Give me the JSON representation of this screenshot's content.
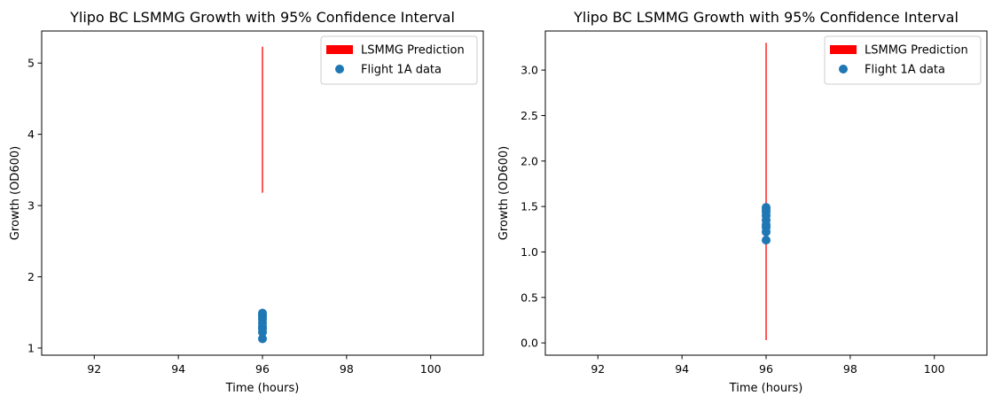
{
  "chart_data": [
    {
      "type": "scatter",
      "title": "Ylipo BC LSMMG Growth with 95% Confidence Interval",
      "xlabel": "Time (hours)",
      "ylabel": "Growth (OD600)",
      "xlim": [
        90.75,
        101.25
      ],
      "ylim": [
        0.9,
        5.45
      ],
      "xticks": [
        92,
        94,
        96,
        98,
        100
      ],
      "xtick_labels": [
        "92",
        "94",
        "96",
        "98",
        "100"
      ],
      "yticks": [
        1,
        2,
        3,
        4,
        5
      ],
      "ytick_labels": [
        "1",
        "2",
        "3",
        "4",
        "5"
      ],
      "grid": false,
      "legend_position": "top-right",
      "series": [
        {
          "name": "LSMMG Prediction",
          "kind": "errorbar",
          "color": "#ff0000",
          "x": 96,
          "y_low": 3.18,
          "y_high": 5.23
        },
        {
          "name": "Flight 1A data",
          "kind": "scatter",
          "color": "#1f77b4",
          "x": [
            96,
            96,
            96,
            96,
            96,
            96,
            96,
            96,
            96
          ],
          "y": [
            1.13,
            1.22,
            1.27,
            1.3,
            1.35,
            1.4,
            1.44,
            1.47,
            1.49
          ]
        }
      ]
    },
    {
      "type": "scatter",
      "title": "Ylipo BC LSMMG Growth with 95% Confidence Interval",
      "xlabel": "Time (hours)",
      "ylabel": "Growth (OD600)",
      "xlim": [
        90.75,
        101.25
      ],
      "ylim": [
        -0.135,
        3.43
      ],
      "xticks": [
        92,
        94,
        96,
        98,
        100
      ],
      "xtick_labels": [
        "92",
        "94",
        "96",
        "98",
        "100"
      ],
      "yticks": [
        0,
        0.5,
        1,
        1.5,
        2,
        2.5,
        3
      ],
      "ytick_labels": [
        "0.0",
        "0.5",
        "1.0",
        "1.5",
        "2.0",
        "2.5",
        "3.0"
      ],
      "grid": false,
      "legend_position": "top-right",
      "series": [
        {
          "name": "LSMMG Prediction",
          "kind": "errorbar",
          "color": "#ff0000",
          "x": 96,
          "y_low": 0.03,
          "y_high": 3.3
        },
        {
          "name": "Flight 1A data",
          "kind": "scatter",
          "color": "#1f77b4",
          "x": [
            96,
            96,
            96,
            96,
            96,
            96,
            96,
            96,
            96
          ],
          "y": [
            1.13,
            1.22,
            1.27,
            1.3,
            1.35,
            1.4,
            1.44,
            1.47,
            1.49
          ]
        }
      ]
    }
  ]
}
